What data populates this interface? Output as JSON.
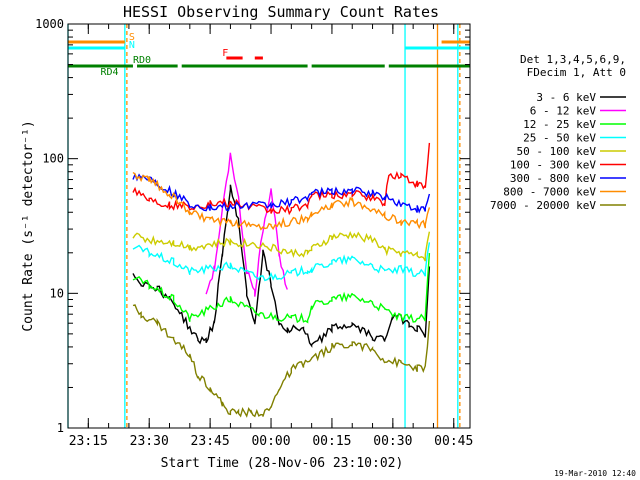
{
  "chart_data": {
    "type": "line",
    "title": "HESSI Observing Summary Count Rates",
    "xlabel": "Start Time (28-Nov-06 23:10:02)",
    "ylabel": "Count Rate (s⁻¹ detector⁻¹)",
    "y_scale": "log",
    "ylim": [
      1,
      1000
    ],
    "xlim": [
      "23:10",
      "00:49"
    ],
    "x_ticks": [
      "23:15",
      "23:30",
      "23:45",
      "00:00",
      "00:15",
      "00:30",
      "00:45"
    ],
    "y_ticks": [
      "1",
      "10",
      "100",
      "1000"
    ],
    "grid": false,
    "legend_position": "right",
    "legend_header": [
      "Det 1,3,4,5,6,9,",
      "FDecim 1, Att 0"
    ],
    "timestamp": "19-Mar-2010 12:40",
    "series": [
      {
        "name": "3 - 6 keV",
        "color": "#000000",
        "x": [
          "23:26",
          "23:28",
          "23:32",
          "23:36",
          "23:40",
          "23:42",
          "23:44",
          "23:46",
          "23:48",
          "23:50",
          "23:52",
          "23:54",
          "23:56",
          "23:58",
          "00:00",
          "00:02",
          "00:04",
          "00:06",
          "00:08",
          "00:10",
          "00:15",
          "00:20",
          "00:25",
          "00:28",
          "00:30",
          "00:34",
          "00:36",
          "00:38",
          "00:39"
        ],
        "y": [
          14,
          12,
          11,
          8.5,
          5.5,
          4.5,
          4.5,
          6,
          20,
          60,
          35,
          10,
          6,
          20,
          12,
          6,
          5.5,
          5.5,
          5.5,
          4,
          5.5,
          5.8,
          4.8,
          4.5,
          7,
          6,
          5.5,
          5,
          15
        ]
      },
      {
        "name": "6 - 12 keV",
        "color": "#ff00ff",
        "x": [
          "23:44",
          "23:46",
          "23:48",
          "23:50",
          "23:52",
          "23:54",
          "23:56",
          "23:58",
          "00:00",
          "00:02",
          "00:04"
        ],
        "y": [
          10,
          15,
          40,
          110,
          50,
          15,
          10,
          30,
          60,
          20,
          10
        ]
      },
      {
        "name": "12 - 25 keV",
        "color": "#00ff00",
        "x": [
          "23:26",
          "23:30",
          "23:36",
          "23:40",
          "23:50",
          "23:57",
          "00:05",
          "00:09",
          "00:10",
          "00:15",
          "00:20",
          "00:25",
          "00:28",
          "00:32",
          "00:36",
          "00:38",
          "00:39"
        ],
        "y": [
          13,
          11.5,
          9,
          6.5,
          9,
          7,
          6.5,
          6.5,
          8,
          9,
          9.5,
          8.5,
          7.5,
          6.5,
          6.5,
          6.5,
          20
        ]
      },
      {
        "name": "25 - 50 keV",
        "color": "#00ffff",
        "x": [
          "23:26",
          "23:30",
          "23:36",
          "23:40",
          "23:50",
          "23:57",
          "00:05",
          "00:09",
          "00:10",
          "00:15",
          "00:20",
          "00:25",
          "00:28",
          "00:32",
          "00:36",
          "00:38",
          "00:39"
        ],
        "y": [
          22,
          20,
          17,
          14.5,
          16,
          13,
          14,
          15,
          15,
          17,
          18,
          16,
          14.5,
          15,
          14,
          14,
          24
        ]
      },
      {
        "name": "50 - 100 keV",
        "color": "#cccc00",
        "x": [
          "23:26",
          "23:30",
          "23:36",
          "23:40",
          "23:50",
          "23:57",
          "00:05",
          "00:09",
          "00:10",
          "00:15",
          "00:20",
          "00:25",
          "00:28",
          "00:32",
          "00:36",
          "00:38",
          "00:39"
        ],
        "y": [
          27,
          25,
          24,
          22,
          24,
          23,
          20,
          20,
          21,
          26,
          27,
          25,
          21,
          20,
          19,
          18.5,
          30
        ]
      },
      {
        "name": "100 - 300 keV",
        "color": "#ff0000",
        "x": [
          "23:26",
          "23:30",
          "23:35",
          "23:40",
          "23:45",
          "23:50",
          "23:55",
          "00:00",
          "00:05",
          "00:09",
          "00:10",
          "00:15",
          "00:20",
          "00:25",
          "00:28",
          "00:29",
          "00:32",
          "00:36",
          "00:38",
          "00:39"
        ],
        "y": [
          60,
          50,
          45,
          44,
          46,
          47,
          44,
          41,
          42,
          46,
          53,
          53,
          55,
          51,
          47,
          75,
          75,
          64,
          60,
          130
        ]
      },
      {
        "name": "300 - 800 keV",
        "color": "#0000ff",
        "x": [
          "23:26",
          "23:30",
          "23:36",
          "23:40",
          "23:45",
          "23:50",
          "23:55",
          "00:00",
          "00:05",
          "00:09",
          "00:10",
          "00:15",
          "00:20",
          "00:25",
          "00:28",
          "00:32",
          "00:36",
          "00:38",
          "00:39"
        ],
        "y": [
          75,
          72,
          55,
          46,
          43,
          44,
          45,
          45,
          48,
          52,
          55,
          57,
          58,
          55,
          52,
          46,
          42,
          41,
          55
        ]
      },
      {
        "name": "800 - 7000 keV",
        "color": "#ff8c00",
        "x": [
          "23:26",
          "23:30",
          "23:35",
          "23:40",
          "23:45",
          "23:50",
          "23:55",
          "00:00",
          "00:05",
          "00:09",
          "00:10",
          "00:15",
          "00:20",
          "00:25",
          "00:28",
          "00:32",
          "00:36",
          "00:38",
          "00:39"
        ],
        "y": [
          75,
          70,
          55,
          40,
          35,
          33,
          32,
          32,
          34,
          36,
          38,
          45,
          48,
          43,
          38,
          34,
          33,
          32,
          45
        ]
      },
      {
        "name": "7000 - 20000 keV",
        "color": "#808000",
        "x": [
          "23:26",
          "23:28",
          "23:32",
          "23:36",
          "23:40",
          "23:42",
          "23:45",
          "23:48",
          "23:50",
          "23:52",
          "23:55",
          "23:58",
          "00:00",
          "00:02",
          "00:05",
          "00:08",
          "00:10",
          "00:15",
          "00:20",
          "00:25",
          "00:28",
          "00:32",
          "00:36",
          "00:38",
          "00:39"
        ],
        "y": [
          8,
          7,
          6,
          4.5,
          3.5,
          2.5,
          2,
          1.5,
          1.3,
          1.3,
          1.3,
          1.3,
          1.4,
          2,
          2.7,
          3,
          3.2,
          4,
          4.3,
          3.8,
          3.2,
          3,
          2.8,
          2.8,
          6
        ]
      }
    ],
    "flag_bars": [
      {
        "label": "RD4",
        "color": "#008000",
        "label_time": "23:18",
        "segments": [
          [
            "23:10",
            "23:26"
          ]
        ]
      },
      {
        "label": "RD0",
        "color": "#008000",
        "label_time": "23:26",
        "segments": [
          [
            "23:27",
            "23:37"
          ],
          [
            "23:38",
            "00:09"
          ],
          [
            "00:10",
            "00:28"
          ],
          [
            "00:29",
            "00:49"
          ]
        ]
      },
      {
        "label": "S",
        "color": "#ff8c00",
        "label_time": "23:25",
        "segments": [
          [
            "23:10",
            "23:24"
          ],
          [
            "00:42",
            "00:49"
          ]
        ]
      },
      {
        "label": "N",
        "color": "#00ffff",
        "label_time": "23:25",
        "segments": [
          [
            "23:10",
            "23:24"
          ],
          [
            "00:33",
            "00:49"
          ]
        ]
      },
      {
        "label": "F",
        "color": "#ff0000",
        "label_time": "23:48",
        "segments": [
          [
            "23:49",
            "23:53"
          ],
          [
            "23:56",
            "23:58"
          ]
        ]
      }
    ],
    "vertical_markers": [
      {
        "time": "23:10",
        "color": "#00ffff",
        "style": "solid"
      },
      {
        "time": "23:24",
        "color": "#00ffff",
        "style": "solid"
      },
      {
        "time": "23:24.5",
        "color": "#ff8c00",
        "style": "dashed"
      },
      {
        "time": "00:33",
        "color": "#00ffff",
        "style": "solid"
      },
      {
        "time": "00:41",
        "color": "#ff8c00",
        "style": "solid"
      },
      {
        "time": "00:46",
        "color": "#00ffff",
        "style": "solid"
      },
      {
        "time": "00:46.5",
        "color": "#ff8c00",
        "style": "dashed"
      }
    ]
  }
}
